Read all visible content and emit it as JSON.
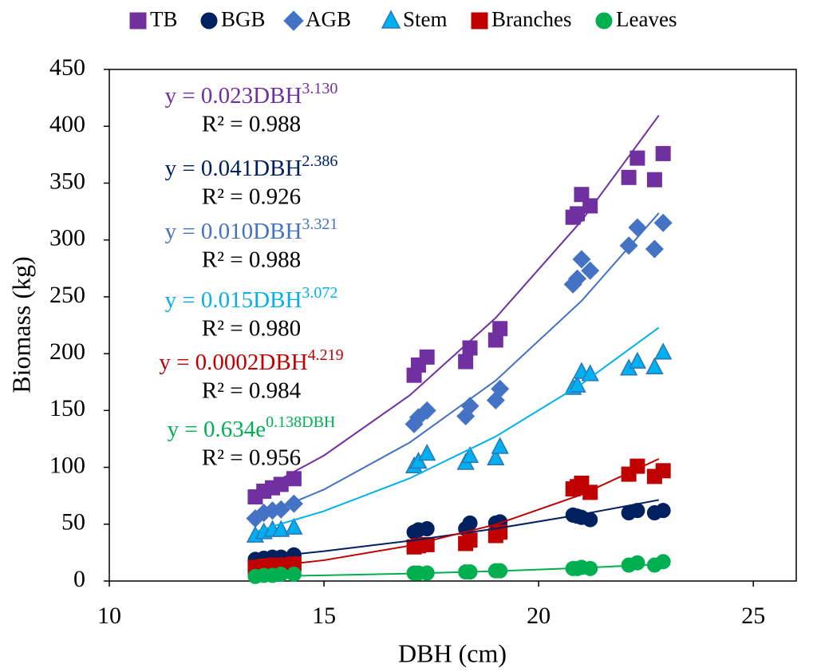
{
  "chart_data": {
    "type": "scatter",
    "x_label": "DBH (cm)",
    "y_label": "Biomass (kg)",
    "xlim": [
      10,
      26
    ],
    "xticks": [
      10,
      15,
      20,
      25
    ],
    "ylim": [
      0,
      450
    ],
    "yticks": [
      0,
      50,
      100,
      150,
      200,
      250,
      300,
      350,
      400,
      450
    ],
    "x": [
      13.4,
      13.6,
      13.8,
      14.0,
      14.3,
      17.1,
      17.2,
      17.4,
      18.3,
      18.4,
      19.0,
      19.1,
      20.8,
      20.9,
      21.0,
      21.2,
      22.1,
      22.3,
      22.7,
      22.9
    ],
    "fit_x": [
      13.4,
      15,
      17,
      19,
      21,
      22.8
    ],
    "series": [
      {
        "name": "TB",
        "color": "#7030a0",
        "marker": "square",
        "values": [
          74,
          79,
          82,
          85,
          90,
          181,
          190,
          197,
          193,
          205,
          212,
          222,
          320,
          323,
          340,
          330,
          355,
          372,
          353,
          376
        ],
        "fit_values": [
          77.6,
          110.4,
          163.4,
          231.5,
          316.9,
          409.6
        ],
        "equation": "y = 0.023DBH",
        "exponent": "3.130",
        "r_squared": "R² = 0.988"
      },
      {
        "name": "BGB",
        "color": "#002060",
        "marker": "circle",
        "values": [
          19,
          20,
          21,
          21,
          23,
          43,
          45,
          46,
          46,
          51,
          51,
          52,
          58,
          57,
          56,
          54,
          60,
          62,
          60,
          62
        ],
        "fit_values": [
          20.1,
          26.2,
          35.4,
          46.1,
          58.6,
          71.3
        ],
        "equation": "y = 0.041DBH",
        "exponent": "2.386",
        "r_squared": "R² = 0.926"
      },
      {
        "name": "AGB",
        "color": "#4472c4",
        "marker": "diamond",
        "values": [
          55,
          60,
          62,
          63,
          68,
          138,
          144,
          150,
          145,
          154,
          159,
          169,
          261,
          266,
          283,
          273,
          295,
          311,
          292,
          315
        ],
        "fit_values": [
          55.3,
          80.5,
          121.9,
          176.3,
          246.4,
          323.7
        ],
        "equation": "y = 0.010DBH",
        "exponent": "3.321",
        "r_squared": "R² = 0.988"
      },
      {
        "name": "Stem",
        "color": "#00b0f0",
        "marker": "triangle",
        "values": [
          40,
          43,
          45,
          45,
          47,
          101,
          105,
          112,
          104,
          110,
          108,
          118,
          170,
          172,
          184,
          182,
          187,
          193,
          188,
          201
        ],
        "fit_values": [
          43.5,
          61.5,
          90.4,
          127.1,
          173.3,
          222.9
        ],
        "equation": "y = 0.015DBH",
        "exponent": "3.072",
        "r_squared": "R² = 0.980"
      },
      {
        "name": "Branches",
        "color": "#c00000",
        "marker": "square",
        "values": [
          12,
          13,
          14,
          14,
          15,
          30,
          31,
          32,
          33,
          36,
          40,
          43,
          81,
          83,
          86,
          78,
          94,
          101,
          92,
          97
        ],
        "fit_values": [
          11.4,
          18.3,
          31.1,
          49.7,
          76.0,
          107.4
        ],
        "equation": "y = 0.0002DBH",
        "exponent": "4.219",
        "r_squared": "R² = 0.984"
      },
      {
        "name": "Leaves",
        "color": "#00b050",
        "marker": "circle",
        "values": [
          4,
          5,
          5,
          6,
          6,
          7,
          7,
          7,
          8,
          8,
          9,
          9,
          11,
          11,
          12,
          11,
          14,
          16,
          14,
          17
        ],
        "fit_values": [
          4.0,
          5.0,
          6.6,
          8.7,
          11.5,
          14.7
        ],
        "equation": "y = 0.634e",
        "exponent": "0.138DBH",
        "r_squared": "R² = 0.956"
      }
    ]
  }
}
